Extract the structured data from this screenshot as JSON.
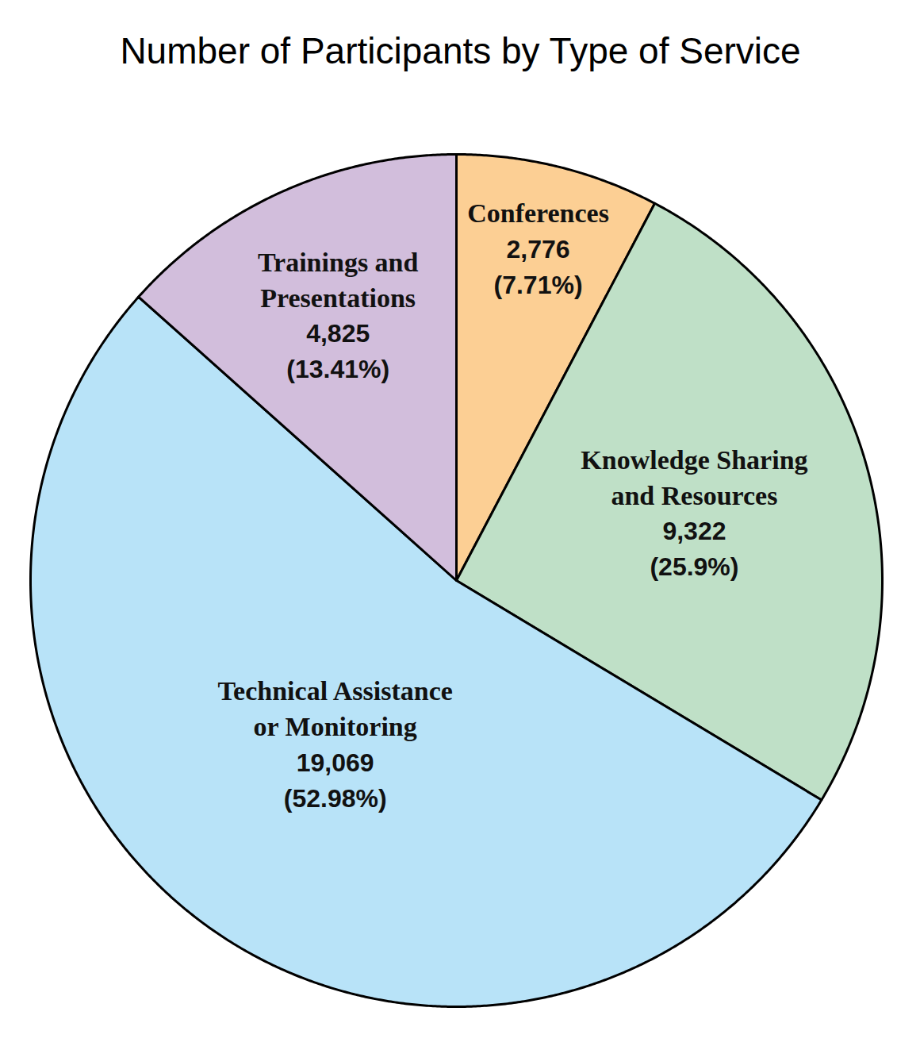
{
  "chart_data": {
    "type": "pie",
    "title": "Number of Participants by Type of Service",
    "categories": [
      "Conferences",
      "Knowledge Sharing\nand Resources",
      "Technical Assistance\nor Monitoring",
      "Trainings and\nPresentations"
    ],
    "values": [
      7.71,
      25.9,
      52.98,
      13.41
    ],
    "value_labels": [
      "(7.71%)",
      "(25.9%)",
      "(52.98%)",
      "(13.41%)"
    ],
    "counts": [
      2776,
      9322,
      19069,
      4825
    ],
    "colors": [
      "#fccf94",
      "#bfe0c7",
      "#b8e3f8",
      "#d2bedc"
    ],
    "data_labels": true
  }
}
